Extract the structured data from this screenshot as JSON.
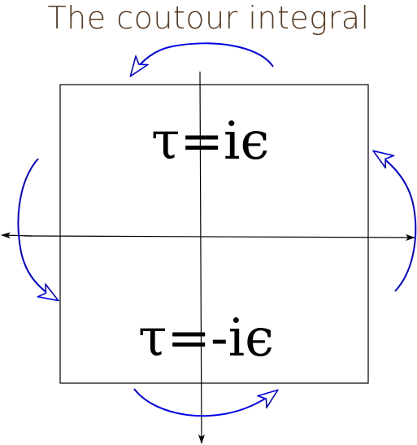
{
  "title": "The coutour integral",
  "upper_label": "τ=iϵ",
  "lower_label": "τ=-iϵ",
  "colors": {
    "title": "#5a3a1e",
    "arrows": "#0000e6",
    "axes": "#000000",
    "box": "#000000"
  },
  "icons": {
    "rotation_arrows": "curved-arrow-icon",
    "axis_arrows": "arrowhead-icon"
  }
}
